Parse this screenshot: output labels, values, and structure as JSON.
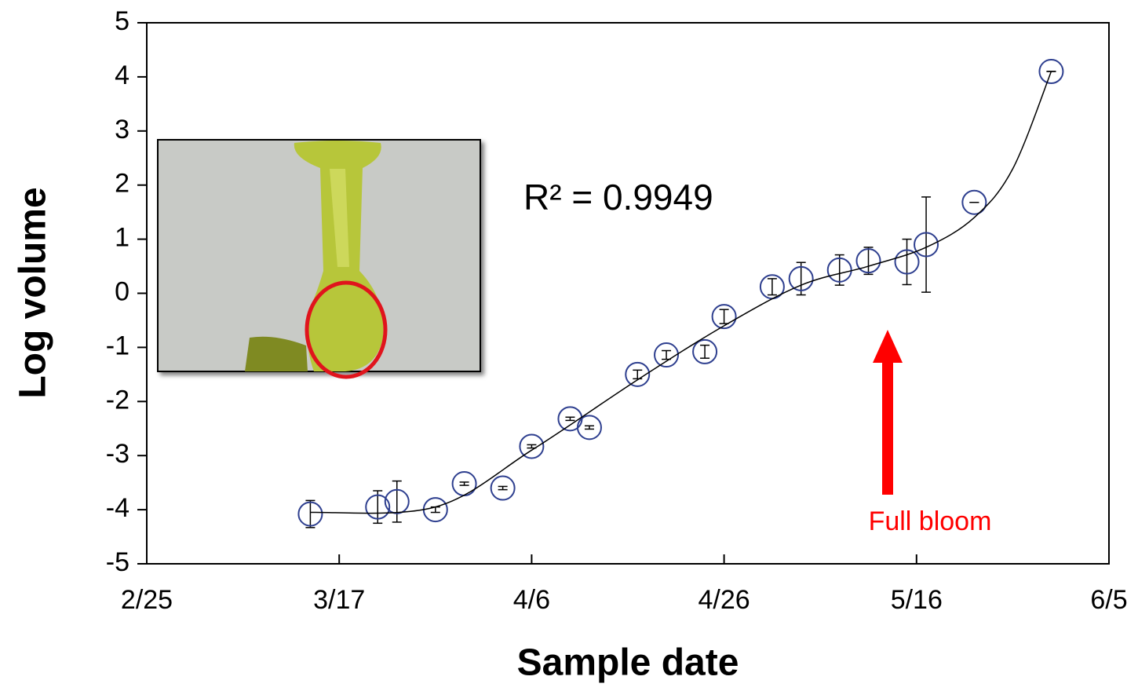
{
  "chart_data": {
    "type": "scatter",
    "xlabel": "Sample date",
    "ylabel": "Log volume",
    "xlim": [
      "2/25",
      "6/5"
    ],
    "xticks": [
      "2/25",
      "3/17",
      "4/6",
      "4/26",
      "5/16",
      "6/5"
    ],
    "ylim": [
      -5,
      5
    ],
    "yticks": [
      -5,
      -4,
      -3,
      -2,
      -1,
      0,
      1,
      2,
      3,
      4,
      5
    ],
    "series": [
      {
        "type": "scatter",
        "color": "#2e3f8f",
        "x": [
          "3/14",
          "3/21",
          "3/23",
          "3/27",
          "3/30",
          "4/3",
          "4/6",
          "4/10",
          "4/12",
          "4/17",
          "4/20",
          "4/24",
          "4/26",
          "5/1",
          "5/4",
          "5/8",
          "5/11",
          "5/15",
          "5/17",
          "5/22",
          "5/30"
        ],
        "values": [
          -4.08,
          -3.95,
          -3.85,
          -4.0,
          -3.52,
          -3.6,
          -2.83,
          -2.32,
          -2.48,
          -1.5,
          -1.14,
          -1.08,
          -0.43,
          0.12,
          0.27,
          0.43,
          0.6,
          0.58,
          0.9,
          1.68,
          4.1
        ],
        "errors": [
          0.25,
          0.3,
          0.38,
          0.05,
          0.03,
          0.03,
          0.03,
          0.03,
          0.03,
          0.08,
          0.08,
          0.12,
          0.13,
          0.15,
          0.3,
          0.28,
          0.25,
          0.42,
          0.88,
          0,
          0
        ]
      },
      {
        "type": "line",
        "color": "#000000",
        "x": [
          "3/14",
          "3/27",
          "4/6",
          "4/17",
          "4/26",
          "5/4",
          "5/11",
          "5/17",
          "5/22",
          "5/26",
          "5/30"
        ],
        "values": [
          -4.05,
          -3.95,
          -2.9,
          -1.6,
          -0.6,
          0.15,
          0.5,
          0.85,
          1.4,
          2.3,
          4.1
        ]
      }
    ],
    "r_squared_label": "R² = 0.9949",
    "annotation": "Full bloom"
  }
}
